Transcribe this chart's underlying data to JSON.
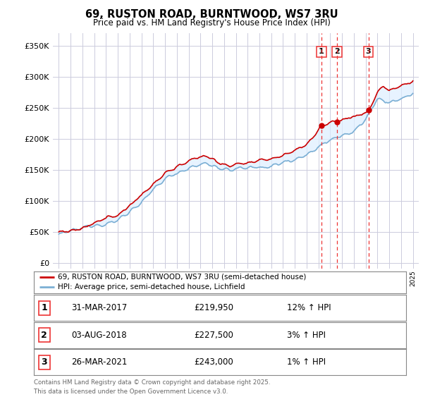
{
  "title": "69, RUSTON ROAD, BURNTWOOD, WS7 3RU",
  "subtitle": "Price paid vs. HM Land Registry's House Price Index (HPI)",
  "property_label": "69, RUSTON ROAD, BURNTWOOD, WS7 3RU (semi-detached house)",
  "hpi_label": "HPI: Average price, semi-detached house, Lichfield",
  "sales": [
    {
      "num": 1,
      "date": "31-MAR-2017",
      "price": 219950,
      "pct": "12%",
      "dir": "↑"
    },
    {
      "num": 2,
      "date": "03-AUG-2018",
      "price": 227500,
      "pct": "3%",
      "dir": "↑"
    },
    {
      "num": 3,
      "date": "26-MAR-2021",
      "price": 243000,
      "pct": "1%",
      "dir": "↑"
    }
  ],
  "sale_dates_year": [
    2017.25,
    2018.58,
    2021.23
  ],
  "footnote": "Contains HM Land Registry data © Crown copyright and database right 2025.\nThis data is licensed under the Open Government Licence v3.0.",
  "yticks": [
    0,
    50000,
    100000,
    150000,
    200000,
    250000,
    300000,
    350000
  ],
  "ylim": [
    -8000,
    370000
  ],
  "xlim": [
    1994.5,
    2025.5
  ],
  "property_color": "#cc0000",
  "hpi_color": "#7bafd4",
  "fill_color": "#ddeeff",
  "vline_color": "#ee3333",
  "background_color": "#ffffff",
  "plot_bg": "#ffffff",
  "grid_color": "#ccccdd"
}
